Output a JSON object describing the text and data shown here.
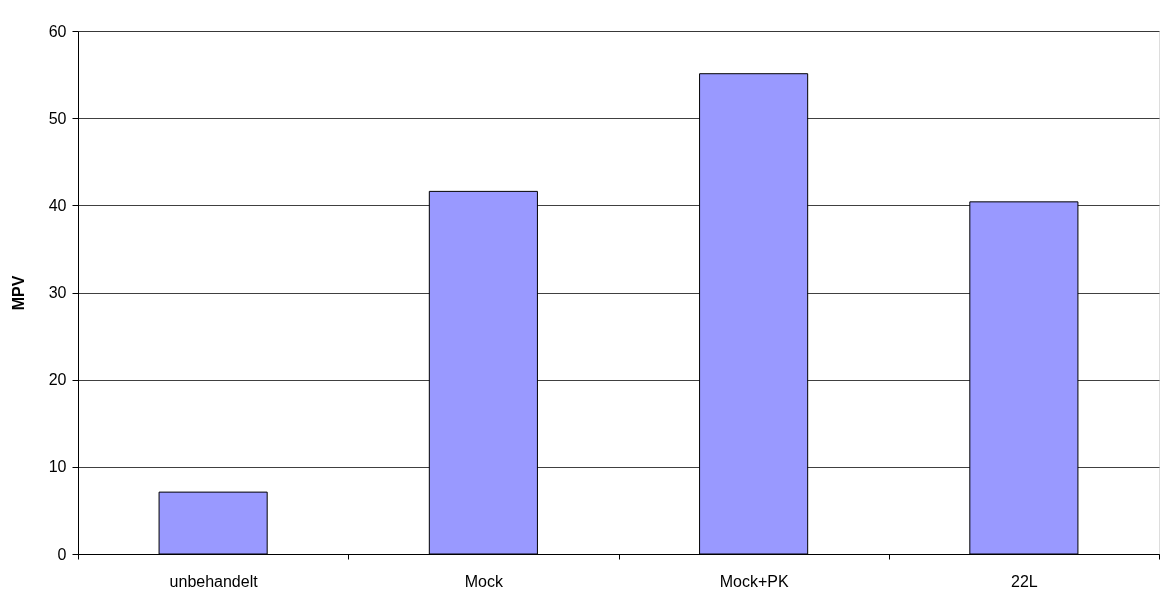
{
  "chart_data": {
    "type": "bar",
    "ylabel": "MPV",
    "categories": [
      "unbehandelt",
      "Mock",
      "Mock+PK",
      "22L"
    ],
    "values": [
      7.1,
      41.6,
      55.1,
      40.4
    ],
    "color": "#9999ff",
    "ylim": [
      0,
      60
    ],
    "yticks": [
      0,
      10,
      20,
      30,
      40,
      50,
      60
    ],
    "grid": "y"
  }
}
